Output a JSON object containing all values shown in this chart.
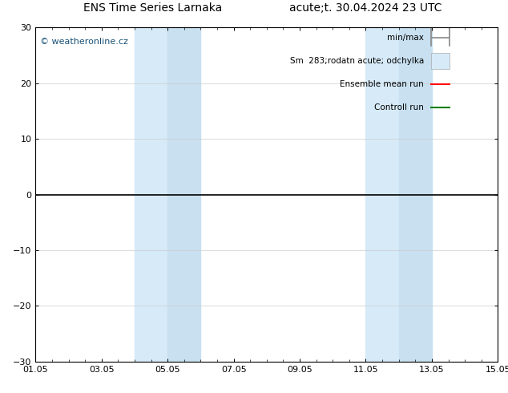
{
  "title_left": "ENS Time Series Larnaka",
  "title_right": "acute;t. 30.04.2024 23 UTC",
  "watermark": "© weatheronline.cz",
  "ylim": [
    -30,
    30
  ],
  "yticks": [
    -30,
    -20,
    -10,
    0,
    10,
    20,
    30
  ],
  "xlim": [
    0,
    14
  ],
  "xtick_labels": [
    "01.05",
    "03.05",
    "05.05",
    "07.05",
    "09.05",
    "11.05",
    "13.05",
    "15.05"
  ],
  "xtick_positions": [
    0,
    2,
    4,
    6,
    8,
    10,
    12,
    14
  ],
  "shaded_bands": [
    [
      3.0,
      4.0
    ],
    [
      4.0,
      5.0
    ],
    [
      10.0,
      11.0
    ],
    [
      11.0,
      12.0
    ]
  ],
  "shaded_colors": [
    "#d6eaf8",
    "#c8e0f0",
    "#d6eaf8",
    "#c8e0f0"
  ],
  "zero_line_color": "#000000",
  "background_color": "#ffffff",
  "legend_items": [
    {
      "label": "min/max",
      "color": "#888888",
      "type": "minmax"
    },
    {
      "label": "Sm  283;rodatn acute; odchylka",
      "color": "#cccccc",
      "type": "fill"
    },
    {
      "label": "Ensemble mean run",
      "color": "#ff0000",
      "type": "line"
    },
    {
      "label": "Controll run",
      "color": "#008000",
      "type": "line"
    }
  ],
  "grid_color": "#cccccc",
  "tick_label_fontsize": 8,
  "title_fontsize": 10,
  "watermark_color": "#1a5276",
  "watermark_fontsize": 8
}
